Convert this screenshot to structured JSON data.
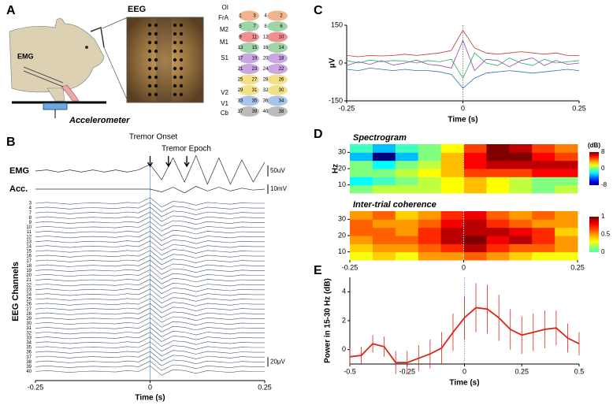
{
  "figure": {
    "panel_labels": [
      "A",
      "B",
      "C",
      "D",
      "E"
    ],
    "panel_a": {
      "eeg_label": "EEG",
      "emg_label": "EMG",
      "accelerometer_label": "Accelerometer",
      "regions": [
        "OI",
        "FrA",
        "M2",
        "M1",
        "S1",
        "V2",
        "V1",
        "Cb"
      ],
      "electrodes": [
        "1",
        "2",
        "3",
        "4",
        "5",
        "6",
        "7",
        "8",
        "9",
        "10",
        "11",
        "12",
        "13",
        "14",
        "15",
        "16",
        "17",
        "18",
        "19",
        "20",
        "21",
        "22",
        "23",
        "24",
        "25",
        "26",
        "27",
        "28",
        "29",
        "30",
        "31",
        "32",
        "33",
        "34",
        "35",
        "36",
        "37",
        "38",
        "39",
        "40"
      ]
    }
  },
  "chart_data": [
    {
      "type": "line",
      "x": [
        -0.25,
        -0.225,
        -0.2,
        -0.175,
        -0.15,
        -0.125,
        -0.1,
        -0.075,
        -0.05,
        -0.025,
        0,
        0.025,
        0.05,
        0.075,
        0.1,
        0.125,
        0.15,
        0.175,
        0.2,
        0.225,
        0.25
      ],
      "series": [
        {
          "color": "#c0392b",
          "values": [
            30,
            25,
            30,
            28,
            30,
            35,
            30,
            35,
            40,
            50,
            130,
            60,
            40,
            35,
            40,
            45,
            40,
            35,
            40,
            30,
            30
          ]
        },
        {
          "color": "#2c6fbb",
          "values": [
            -25,
            -30,
            -20,
            -25,
            -30,
            -25,
            -30,
            -30,
            -35,
            -45,
            -100,
            -60,
            -40,
            -35,
            -30,
            -35,
            -40,
            -35,
            -30,
            -25,
            -30
          ]
        },
        {
          "color": "#27ae60",
          "values": [
            10,
            0,
            12,
            5,
            10,
            8,
            0,
            10,
            5,
            15,
            -60,
            40,
            0,
            -10,
            20,
            0,
            -10,
            15,
            0,
            5,
            10
          ]
        },
        {
          "color": "#8e44ad",
          "values": [
            -10,
            5,
            -5,
            10,
            -8,
            0,
            12,
            -5,
            -10,
            -20,
            90,
            -30,
            15,
            10,
            -15,
            10,
            20,
            -10,
            10,
            -5,
            0
          ]
        }
      ],
      "xlim": [
        -0.25,
        0.25
      ],
      "ylim": [
        -150,
        150
      ],
      "xticks": [
        -0.25,
        0,
        0.25
      ],
      "yticks": [
        -150,
        0,
        150
      ],
      "xlabel": "Time (s)",
      "ylabel": "μV",
      "vline": 0
    },
    {
      "type": "heatmap",
      "title": "Spectrogram",
      "x": [
        -0.225,
        -0.175,
        -0.125,
        -0.075,
        -0.025,
        0.025,
        0.075,
        0.125,
        0.175,
        0.225
      ],
      "y": [
        7.5,
        12.5,
        17.5,
        22.5,
        27.5,
        32.5
      ],
      "z": [
        [
          0,
          1,
          1,
          1,
          2,
          3,
          2,
          1,
          0,
          1
        ],
        [
          -2,
          -1,
          0,
          1,
          2,
          3,
          2,
          1,
          0,
          0
        ],
        [
          0,
          0,
          1,
          2,
          3,
          5,
          5,
          5,
          6,
          6
        ],
        [
          0,
          -2,
          0,
          1,
          3,
          6,
          7,
          7,
          7,
          7
        ],
        [
          -3,
          -8,
          -3,
          0,
          3,
          6,
          8,
          8,
          6,
          5
        ],
        [
          -1,
          -3,
          -1,
          0,
          2,
          5,
          8,
          7,
          5,
          4
        ]
      ],
      "xlim": [
        -0.25,
        0.25
      ],
      "ylim": [
        5,
        35
      ],
      "yticks": [
        10,
        20,
        30
      ],
      "ylabel": "Hz",
      "colormap": "jet",
      "clim": [
        -8,
        8
      ],
      "cticks": [
        8,
        0,
        -8
      ],
      "clabel": "(dB)",
      "vline": 0
    },
    {
      "type": "heatmap",
      "title": "Inter-trial coherence",
      "x": [
        -0.225,
        -0.175,
        -0.125,
        -0.075,
        -0.025,
        0.025,
        0.075,
        0.125,
        0.175,
        0.225
      ],
      "y": [
        7.5,
        12.5,
        17.5,
        22.5,
        27.5,
        32.5
      ],
      "z": [
        [
          0.3,
          0.4,
          0.3,
          0.5,
          0.5,
          0.6,
          0.5,
          0.4,
          0.3,
          0.3
        ],
        [
          0.4,
          0.5,
          0.5,
          0.6,
          0.7,
          0.9,
          0.7,
          0.6,
          0.6,
          0.5
        ],
        [
          0.5,
          0.6,
          0.6,
          0.7,
          0.9,
          1,
          0.8,
          0.9,
          0.7,
          0.5
        ],
        [
          0.6,
          0.6,
          0.5,
          0.7,
          0.9,
          0.9,
          0.9,
          0.8,
          0.7,
          0.4
        ],
        [
          0.6,
          0.5,
          0.5,
          0.6,
          0.8,
          0.9,
          0.7,
          0.6,
          0.5,
          0.5
        ],
        [
          0.5,
          0.6,
          0.4,
          0.5,
          0.7,
          0.8,
          0.6,
          0.5,
          0.6,
          0.5
        ]
      ],
      "xlim": [
        -0.25,
        0.25
      ],
      "ylim": [
        5,
        35
      ],
      "xticks": [
        -0.25,
        0,
        0.25
      ],
      "yticks": [
        10,
        20,
        30
      ],
      "colormap": "jet-upper",
      "clim": [
        0,
        1
      ],
      "cticks": [
        1,
        0.5,
        0
      ],
      "vline": 0
    },
    {
      "type": "line",
      "x": [
        -0.5,
        -0.45,
        -0.4,
        -0.35,
        -0.3,
        -0.25,
        -0.2,
        -0.15,
        -0.1,
        -0.05,
        0,
        0.05,
        0.1,
        0.15,
        0.2,
        0.25,
        0.3,
        0.35,
        0.4,
        0.45,
        0.5
      ],
      "series": [
        {
          "color": "#d62718",
          "values": [
            -0.5,
            -0.4,
            0.4,
            0.2,
            -0.9,
            -0.9,
            -0.6,
            -0.3,
            0.1,
            1.2,
            2.2,
            2.9,
            2.8,
            2.2,
            1.4,
            1.0,
            1.2,
            1.4,
            1.5,
            0.8,
            0.4
          ],
          "errors": [
            0.6,
            0.6,
            0.6,
            0.7,
            0.8,
            0.8,
            0.9,
            1.0,
            1.1,
            1.3,
            1.5,
            1.7,
            1.7,
            1.6,
            1.4,
            1.3,
            1.3,
            1.3,
            1.2,
            1.0,
            0.8
          ]
        }
      ],
      "xlim": [
        -0.5,
        0.5
      ],
      "ylim": [
        -1,
        5
      ],
      "xticks": [
        -0.5,
        -0.25,
        0,
        0.25,
        0.5
      ],
      "yticks": [
        0,
        2,
        4
      ],
      "xlabel": "Time (s)",
      "ylabel": "Power in 15-30 Hz (dB)",
      "vline": 0
    },
    {
      "type": "traces",
      "x": [
        -0.25,
        -0.225,
        -0.2,
        -0.175,
        -0.15,
        -0.125,
        -0.1,
        -0.075,
        -0.05,
        -0.025,
        0,
        0.025,
        0.05,
        0.075,
        0.1,
        0.125,
        0.15,
        0.175,
        0.2,
        0.225,
        0.25
      ],
      "xlim": [
        -0.25,
        0.25
      ],
      "xticks": [
        -0.25,
        0,
        0.25
      ],
      "xlabel": "Time (s)",
      "ylabel": "EEG Channels",
      "emg": {
        "label": "EMG",
        "values": [
          0,
          5,
          -5,
          5,
          -5,
          5,
          -5,
          5,
          -5,
          5,
          30,
          -40,
          60,
          -50,
          70,
          -60,
          60,
          -60,
          50,
          -50,
          40
        ],
        "scale": {
          "value": 50,
          "label": "50uV"
        }
      },
      "acc": {
        "label": "Acc.",
        "values": [
          0,
          0,
          0,
          0,
          0,
          0,
          0,
          0,
          0,
          0,
          0,
          -3,
          2,
          -4,
          3,
          -2,
          2,
          -2,
          1,
          -1,
          0
        ],
        "scale": {
          "value": 10,
          "label": "10mV"
        }
      },
      "channels": [
        "3",
        "4",
        "7",
        "8",
        "9",
        "10",
        "11",
        "12",
        "13",
        "14",
        "15",
        "16",
        "17",
        "18",
        "19",
        "20",
        "21",
        "22",
        "23",
        "24",
        "25",
        "26",
        "27",
        "28",
        "29",
        "30",
        "31",
        "32",
        "33",
        "34",
        "35",
        "36",
        "37",
        "38",
        "39",
        "40"
      ],
      "channel_waveform": [
        0,
        2,
        0,
        -2,
        0,
        1,
        0,
        -1,
        2,
        0,
        12,
        -8,
        4,
        2,
        -4,
        2,
        0,
        -2,
        1,
        0,
        0
      ],
      "channel_scale": {
        "value": 20,
        "label": "20μV"
      },
      "onset_label": "Tremor Onset",
      "epoch_label": "Tremor Epoch",
      "epoch_times": [
        0,
        0.04,
        0.08
      ],
      "vline": 0
    }
  ]
}
